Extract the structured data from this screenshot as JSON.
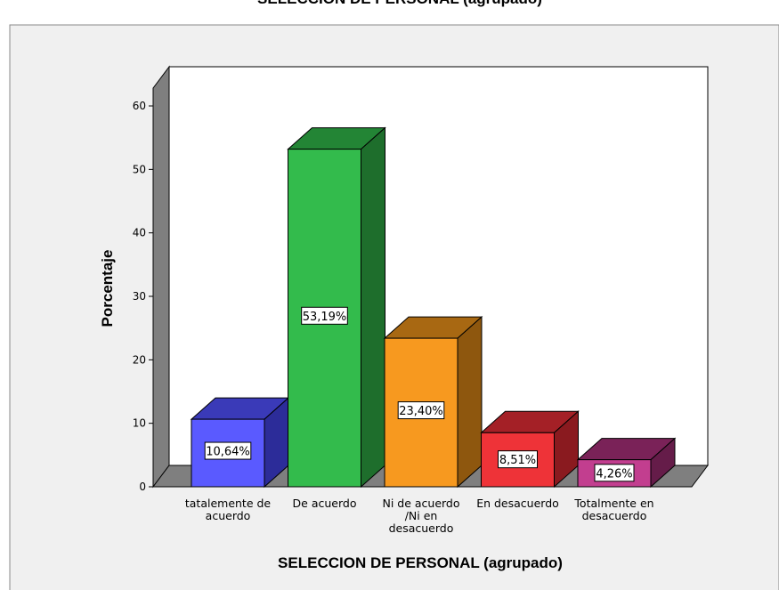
{
  "chart_data": {
    "type": "bar",
    "title": "SELECCION DE PERSONAL (agrupado)",
    "xlabel": "SELECCION DE PERSONAL (agrupado)",
    "ylabel": "Porcentaje",
    "ylim": [
      0,
      60
    ],
    "yticks": [
      "0",
      "10",
      "20",
      "30",
      "40",
      "50",
      "60"
    ],
    "categories": [
      [
        "tatalemente de",
        "acuerdo"
      ],
      [
        "De acuerdo"
      ],
      [
        "Ni de acuerdo",
        "/Ni en",
        "desacuerdo"
      ],
      [
        "En desacuerdo"
      ],
      [
        "Totalmente en",
        "desacuerdo"
      ]
    ],
    "values": [
      10.64,
      53.19,
      23.4,
      8.51,
      4.26
    ],
    "data_labels": [
      "10,64%",
      "53,19%",
      "23,40%",
      "8,51%",
      "4,26%"
    ],
    "colors": [
      {
        "front": "#5a5aff",
        "top": "#3a3ab8",
        "side": "#2c2c99"
      },
      {
        "front": "#33bb4c",
        "top": "#238535",
        "side": "#1e6e2c"
      },
      {
        "front": "#f7991f",
        "top": "#a86812",
        "side": "#8e570e"
      },
      {
        "front": "#ee3338",
        "top": "#a42026",
        "side": "#8a1a1f"
      },
      {
        "front": "#c23e8f",
        "top": "#7a2258",
        "side": "#651c49"
      }
    ],
    "style": {
      "panel_bg": "#f0f0f0",
      "plot_bg": "#ffffff",
      "wall_side": "#7f7f7f",
      "floor": "#7f7f7f"
    }
  }
}
